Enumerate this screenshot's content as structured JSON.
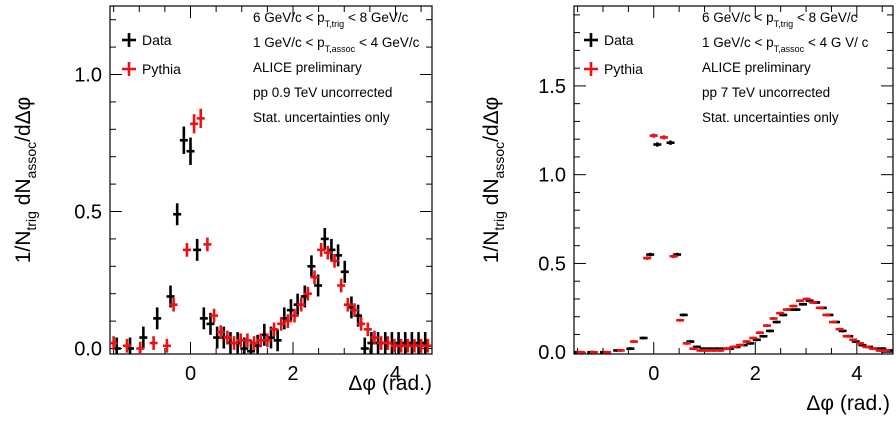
{
  "chart_data": [
    {
      "type": "scatter",
      "xlabel": "Δφ (rad.)",
      "ylabel": "1/N_trig dN_assoc/dΔφ",
      "xlim": [
        -1.5708,
        4.7124
      ],
      "ylim": [
        -0.02,
        1.25
      ],
      "xticks": [
        {
          "v": 0,
          "label": "0"
        },
        {
          "v": 2,
          "label": "2"
        },
        {
          "v": 4,
          "label": "4"
        }
      ],
      "yticks": [
        {
          "v": 0,
          "label": "0.0"
        },
        {
          "v": 0.5,
          "label": "0.5"
        },
        {
          "v": 1.0,
          "label": "1.0"
        }
      ],
      "legend": {
        "position": "top-left"
      },
      "info_lines": [
        {
          "parts": [
            {
              "t": "6 GeV/c < p"
            },
            {
              "t": "T,trig",
              "sub": true
            },
            {
              "t": " < 8 GeV/c"
            }
          ]
        },
        {
          "parts": [
            {
              "t": "1 GeV/c < p"
            },
            {
              "t": "T,assoc",
              "sub": true
            },
            {
              "t": " < 4 GeV/c"
            }
          ]
        },
        {
          "parts": [
            {
              "t": "ALICE preliminary"
            }
          ]
        },
        {
          "parts": [
            {
              "t": "pp 0.9 TeV uncorrected"
            }
          ]
        },
        {
          "parts": [
            {
              "t": "Stat. uncertainties only"
            }
          ]
        }
      ],
      "series": [
        {
          "name": "Data",
          "color": "#000000",
          "x": [
            -1.44,
            -1.18,
            -0.92,
            -0.65,
            -0.39,
            -0.26,
            -0.13,
            0.0,
            0.13,
            0.26,
            0.39,
            0.52,
            0.65,
            0.78,
            0.92,
            1.05,
            1.18,
            1.31,
            1.44,
            1.57,
            1.7,
            1.83,
            1.96,
            2.09,
            2.23,
            2.36,
            2.49,
            2.62,
            2.75,
            2.88,
            3.01,
            3.14,
            3.27,
            3.4,
            3.53,
            3.66,
            3.8,
            3.93,
            4.06,
            4.19,
            4.32,
            4.45,
            4.58
          ],
          "y": [
            0.0,
            0.0,
            0.04,
            0.11,
            0.19,
            0.49,
            0.76,
            0.72,
            0.36,
            0.11,
            0.09,
            0.04,
            0.04,
            0.02,
            0.02,
            0.0,
            -0.01,
            0.01,
            0.05,
            0.04,
            0.03,
            0.11,
            0.14,
            0.16,
            0.19,
            0.3,
            0.23,
            0.4,
            0.36,
            0.34,
            0.28,
            0.15,
            0.12,
            0.0,
            0.02,
            0.02,
            0.02,
            0.02,
            0.02,
            0.02,
            0.02,
            0.02,
            0.02
          ],
          "err": [
            0.04,
            0.04,
            0.04,
            0.04,
            0.04,
            0.04,
            0.05,
            0.05,
            0.04,
            0.04,
            0.04,
            0.04,
            0.04,
            0.04,
            0.04,
            0.04,
            0.04,
            0.04,
            0.04,
            0.04,
            0.04,
            0.04,
            0.04,
            0.04,
            0.04,
            0.04,
            0.04,
            0.04,
            0.04,
            0.04,
            0.04,
            0.04,
            0.04,
            0.04,
            0.04,
            0.04,
            0.04,
            0.04,
            0.04,
            0.04,
            0.04,
            0.04,
            0.04
          ]
        },
        {
          "name": "Pythia",
          "color": "#ee1111",
          "x": [
            -1.5,
            -1.24,
            -0.98,
            -0.72,
            -0.46,
            -0.33,
            -0.07,
            0.07,
            0.2,
            0.33,
            0.46,
            0.59,
            0.72,
            0.85,
            0.98,
            1.11,
            1.24,
            1.37,
            1.5,
            1.63,
            1.77,
            1.9,
            2.03,
            2.16,
            2.29,
            2.42,
            2.55,
            2.68,
            2.81,
            2.94,
            3.07,
            3.2,
            3.33,
            3.46,
            3.59,
            3.72,
            3.85,
            3.98,
            4.11,
            4.24,
            4.37,
            4.5,
            4.63
          ],
          "y": [
            0.02,
            0.01,
            0.0,
            0.02,
            0.01,
            0.16,
            0.36,
            0.82,
            0.84,
            0.38,
            0.12,
            0.06,
            0.04,
            0.02,
            0.03,
            0.03,
            0.02,
            0.03,
            0.03,
            0.07,
            0.09,
            0.1,
            0.12,
            0.16,
            0.2,
            0.26,
            0.36,
            0.35,
            0.32,
            0.23,
            0.16,
            0.14,
            0.09,
            0.07,
            0.04,
            0.02,
            0.02,
            0.01,
            0.01,
            0.01,
            0.01,
            0.01,
            0.01
          ],
          "err": [
            0.025,
            0.025,
            0.025,
            0.025,
            0.025,
            0.025,
            0.025,
            0.035,
            0.035,
            0.025,
            0.025,
            0.025,
            0.025,
            0.025,
            0.025,
            0.025,
            0.025,
            0.025,
            0.025,
            0.025,
            0.025,
            0.025,
            0.025,
            0.025,
            0.025,
            0.025,
            0.025,
            0.025,
            0.025,
            0.025,
            0.025,
            0.025,
            0.025,
            0.025,
            0.025,
            0.025,
            0.025,
            0.025,
            0.025,
            0.025,
            0.025,
            0.025,
            0.025
          ]
        }
      ]
    },
    {
      "type": "scatter",
      "xlabel": "Δφ (rad.)",
      "ylabel": "1/N_trig dN_assoc/dΔφ",
      "xlim": [
        -1.5708,
        4.7124
      ],
      "ylim": [
        -0.01,
        1.95
      ],
      "xticks": [
        {
          "v": 0,
          "label": "0"
        },
        {
          "v": 2,
          "label": "2"
        },
        {
          "v": 4,
          "label": "4"
        }
      ],
      "yticks": [
        {
          "v": 0,
          "label": "0.0"
        },
        {
          "v": 0.5,
          "label": "0.5"
        },
        {
          "v": 1.0,
          "label": "1.0"
        },
        {
          "v": 1.5,
          "label": "1.5"
        }
      ],
      "legend": {
        "position": "top-left"
      },
      "info_lines": [
        {
          "parts": [
            {
              "t": "6 GeV/c < p"
            },
            {
              "t": "T,trig",
              "sub": true
            },
            {
              "t": " < 8 GeV/c"
            }
          ]
        },
        {
          "parts": [
            {
              "t": "1 GeV/c < p"
            },
            {
              "t": "T,assoc",
              "sub": true
            },
            {
              "t": " < 4 G V/ c"
            }
          ]
        },
        {
          "parts": [
            {
              "t": "ALICE preliminary"
            }
          ]
        },
        {
          "parts": [
            {
              "t": "pp 7 TeV uncorrected"
            }
          ]
        },
        {
          "parts": [
            {
              "t": "Stat. uncertainties only"
            }
          ]
        }
      ],
      "series": [
        {
          "name": "Data",
          "color": "#000000",
          "x": [
            -1.5,
            -1.23,
            -0.98,
            -0.72,
            -0.46,
            -0.2,
            -0.07,
            0.07,
            0.33,
            0.46,
            0.59,
            0.72,
            0.85,
            0.98,
            1.11,
            1.24,
            1.37,
            1.5,
            1.63,
            1.77,
            1.9,
            2.03,
            2.16,
            2.29,
            2.42,
            2.55,
            2.68,
            2.81,
            2.94,
            3.07,
            3.2,
            3.33,
            3.46,
            3.59,
            3.72,
            3.85,
            3.98,
            4.11,
            4.24,
            4.37,
            4.5,
            4.63
          ],
          "y": [
            0.0,
            0.0,
            0.0,
            0.01,
            0.02,
            0.08,
            0.55,
            1.17,
            1.18,
            0.55,
            0.21,
            0.06,
            0.03,
            0.02,
            0.02,
            0.02,
            0.02,
            0.02,
            0.03,
            0.04,
            0.05,
            0.07,
            0.09,
            0.12,
            0.17,
            0.21,
            0.24,
            0.24,
            0.27,
            0.29,
            0.28,
            0.25,
            0.21,
            0.17,
            0.12,
            0.09,
            0.06,
            0.04,
            0.03,
            0.02,
            0.02,
            0.01
          ],
          "err": [
            0.008,
            0.008,
            0.008,
            0.008,
            0.008,
            0.008,
            0.01,
            0.012,
            0.012,
            0.01,
            0.008,
            0.008,
            0.008,
            0.008,
            0.008,
            0.008,
            0.008,
            0.008,
            0.008,
            0.008,
            0.008,
            0.008,
            0.008,
            0.008,
            0.008,
            0.008,
            0.008,
            0.008,
            0.008,
            0.008,
            0.008,
            0.008,
            0.008,
            0.008,
            0.008,
            0.008,
            0.008,
            0.008,
            0.008,
            0.008,
            0.008,
            0.008
          ]
        },
        {
          "name": "Pythia",
          "color": "#ee1111",
          "x": [
            -1.44,
            -1.18,
            -0.92,
            -0.65,
            -0.39,
            -0.13,
            0.0,
            0.2,
            0.39,
            0.52,
            0.65,
            0.78,
            0.92,
            1.05,
            1.18,
            1.31,
            1.44,
            1.57,
            1.7,
            1.83,
            1.96,
            2.09,
            2.23,
            2.36,
            2.49,
            2.62,
            2.75,
            2.88,
            3.01,
            3.14,
            3.27,
            3.4,
            3.53,
            3.66,
            3.8,
            3.93,
            4.06,
            4.19,
            4.32,
            4.45,
            4.58
          ],
          "y": [
            0.0,
            0.0,
            0.0,
            0.01,
            0.06,
            0.53,
            1.22,
            1.21,
            0.54,
            0.18,
            0.05,
            0.02,
            0.01,
            0.01,
            0.01,
            0.01,
            0.02,
            0.03,
            0.04,
            0.06,
            0.08,
            0.11,
            0.15,
            0.19,
            0.22,
            0.24,
            0.26,
            0.29,
            0.3,
            0.28,
            0.25,
            0.21,
            0.17,
            0.13,
            0.09,
            0.07,
            0.05,
            0.03,
            0.02,
            0.01,
            0.01
          ],
          "err": [
            0.008,
            0.008,
            0.008,
            0.008,
            0.008,
            0.01,
            0.012,
            0.012,
            0.01,
            0.008,
            0.008,
            0.008,
            0.008,
            0.008,
            0.008,
            0.008,
            0.008,
            0.008,
            0.008,
            0.008,
            0.008,
            0.008,
            0.008,
            0.008,
            0.008,
            0.008,
            0.008,
            0.008,
            0.008,
            0.008,
            0.008,
            0.008,
            0.008,
            0.008,
            0.008,
            0.008,
            0.008,
            0.008,
            0.008,
            0.008,
            0.008
          ]
        }
      ]
    }
  ]
}
